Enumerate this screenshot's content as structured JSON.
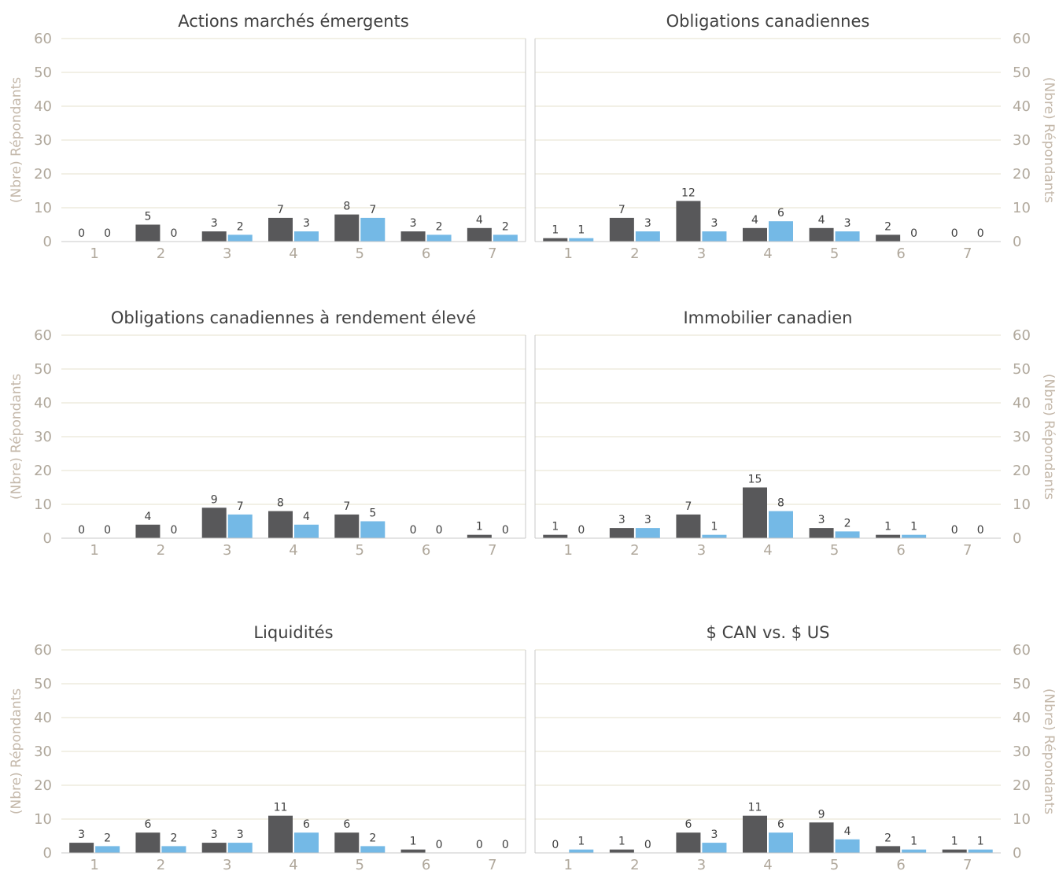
{
  "colors": {
    "series_a": "#58585a",
    "series_b": "#74b9e6",
    "grid": "#e6e0cc",
    "tick": "#b0a89c"
  },
  "y_axis_label": "(Nbre) Répondants",
  "chart_data": [
    {
      "type": "bar",
      "title": "Actions marchés émergents",
      "categories": [
        "1",
        "2",
        "3",
        "4",
        "5",
        "6",
        "7"
      ],
      "ylim": [
        0,
        60
      ],
      "yticks": [
        0,
        10,
        20,
        30,
        40,
        50,
        60
      ],
      "ylabel": "(Nbre) Répondants",
      "series": [
        {
          "values": [
            0,
            5,
            3,
            7,
            8,
            3,
            4
          ]
        },
        {
          "values": [
            0,
            0,
            2,
            3,
            7,
            2,
            2
          ]
        }
      ]
    },
    {
      "type": "bar",
      "title": "Obligations canadiennes",
      "categories": [
        "1",
        "2",
        "3",
        "4",
        "5",
        "6",
        "7"
      ],
      "ylim": [
        0,
        60
      ],
      "yticks": [
        0,
        10,
        20,
        30,
        40,
        50,
        60
      ],
      "ylabel": "(Nbre) Répondants",
      "series": [
        {
          "values": [
            1,
            7,
            12,
            4,
            4,
            2,
            0
          ]
        },
        {
          "values": [
            1,
            3,
            3,
            6,
            3,
            0,
            0
          ]
        }
      ]
    },
    {
      "type": "bar",
      "title": "Obligations canadiennes à rendement élevé",
      "categories": [
        "1",
        "2",
        "3",
        "4",
        "5",
        "6",
        "7"
      ],
      "ylim": [
        0,
        60
      ],
      "yticks": [
        0,
        10,
        20,
        30,
        40,
        50,
        60
      ],
      "ylabel": "(Nbre) Répondants",
      "series": [
        {
          "values": [
            0,
            4,
            9,
            8,
            7,
            0,
            1
          ]
        },
        {
          "values": [
            0,
            0,
            7,
            4,
            5,
            0,
            0
          ]
        }
      ]
    },
    {
      "type": "bar",
      "title": "Immobilier canadien",
      "categories": [
        "1",
        "2",
        "3",
        "4",
        "5",
        "6",
        "7"
      ],
      "ylim": [
        0,
        60
      ],
      "yticks": [
        0,
        10,
        20,
        30,
        40,
        50,
        60
      ],
      "ylabel": "(Nbre) Répondants",
      "series": [
        {
          "values": [
            1,
            3,
            7,
            15,
            3,
            1,
            0
          ]
        },
        {
          "values": [
            0,
            3,
            1,
            8,
            2,
            1,
            0
          ]
        }
      ]
    },
    {
      "type": "bar",
      "title": "Liquidités",
      "categories": [
        "1",
        "2",
        "3",
        "4",
        "5",
        "6",
        "7"
      ],
      "ylim": [
        0,
        60
      ],
      "yticks": [
        0,
        10,
        20,
        30,
        40,
        50,
        60
      ],
      "ylabel": "(Nbre) Répondants",
      "series": [
        {
          "values": [
            3,
            6,
            3,
            11,
            6,
            1,
            0
          ]
        },
        {
          "values": [
            2,
            2,
            3,
            6,
            2,
            0,
            0
          ]
        }
      ]
    },
    {
      "type": "bar",
      "title": "$ CAN vs. $ US",
      "categories": [
        "1",
        "2",
        "3",
        "4",
        "5",
        "6",
        "7"
      ],
      "ylim": [
        0,
        60
      ],
      "yticks": [
        0,
        10,
        20,
        30,
        40,
        50,
        60
      ],
      "ylabel": "(Nbre) Répondants",
      "series": [
        {
          "values": [
            0,
            1,
            6,
            11,
            9,
            2,
            1
          ]
        },
        {
          "values": [
            1,
            0,
            3,
            6,
            4,
            1,
            1
          ]
        }
      ]
    }
  ]
}
